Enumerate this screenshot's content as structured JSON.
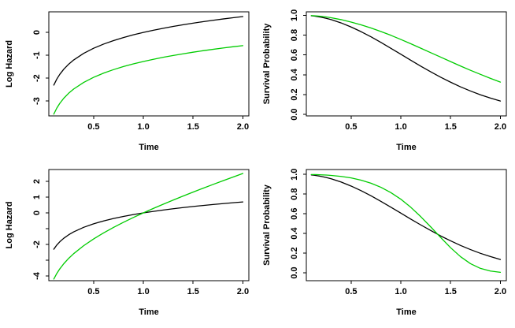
{
  "figure": {
    "description": "2x2 grid of R base-graphics plots comparing log hazard functions and survival probability curves for two groups",
    "background": "#FFFFFF"
  },
  "colors": {
    "black_curve": "#000000",
    "green_curve": "#00CC00",
    "axis": "#000000",
    "text": "#000000"
  },
  "chart_data": [
    {
      "id": "top-left",
      "type": "line",
      "title": "",
      "xlabel": "Time",
      "ylabel": "Log Hazard",
      "xlim": [
        0.05,
        2.06
      ],
      "ylim": [
        -3.65,
        0.9
      ],
      "grid": false,
      "legend": "none",
      "x_ticks": [
        0.5,
        1.0,
        1.5,
        2.0
      ],
      "x_tick_labels": [
        "0.5",
        "1.0",
        "1.5",
        "2.0"
      ],
      "y_ticks": [
        0,
        -1,
        -2,
        -3
      ],
      "y_tick_labels": [
        "0",
        "-1",
        "-2",
        "-3"
      ],
      "x": [
        0.1,
        0.13,
        0.16,
        0.2,
        0.25,
        0.3,
        0.4,
        0.5,
        0.6,
        0.7,
        0.8,
        0.9,
        1,
        1.1,
        1.2,
        1.3,
        1.4,
        1.5,
        1.6,
        1.7,
        1.8,
        1.9,
        2
      ],
      "series": [
        {
          "name": "black log hazard (log t)",
          "color_key": "black_curve",
          "y": [
            -2.303,
            -2.04,
            -1.833,
            -1.609,
            -1.386,
            -1.204,
            -0.916,
            -0.693,
            -0.511,
            -0.357,
            -0.223,
            -0.105,
            0,
            0.095,
            0.182,
            0.262,
            0.336,
            0.405,
            0.47,
            0.531,
            0.588,
            0.642,
            0.693
          ]
        },
        {
          "name": "green log hazard (parallel, log t - 1.27)",
          "color_key": "green_curve",
          "y": [
            -3.573,
            -3.31,
            -3.103,
            -2.879,
            -2.656,
            -2.474,
            -2.186,
            -1.963,
            -1.781,
            -1.627,
            -1.493,
            -1.375,
            -1.27,
            -1.175,
            -1.088,
            -1.008,
            -0.934,
            -0.865,
            -0.8,
            -0.739,
            -0.682,
            -0.628,
            -0.577
          ]
        }
      ]
    },
    {
      "id": "top-right",
      "type": "line",
      "title": "",
      "xlabel": "Time",
      "ylabel": "Survival Probability",
      "xlim": [
        0.05,
        2.06
      ],
      "ylim": [
        -0.015,
        1.035
      ],
      "grid": false,
      "legend": "none",
      "x_ticks": [
        0.5,
        1.0,
        1.5,
        2.0
      ],
      "x_tick_labels": [
        "0.5",
        "1.0",
        "1.5",
        "2.0"
      ],
      "y_ticks": [
        1.0,
        0.8,
        0.6,
        0.4,
        0.2,
        0.0
      ],
      "y_tick_labels": [
        "1.0",
        "0.8",
        "0.6",
        "0.4",
        "0.2",
        "0.0"
      ],
      "x": [
        0.1,
        0.13,
        0.16,
        0.2,
        0.25,
        0.3,
        0.4,
        0.5,
        0.6,
        0.7,
        0.8,
        0.9,
        1,
        1.1,
        1.2,
        1.3,
        1.4,
        1.5,
        1.6,
        1.7,
        1.8,
        1.9,
        2
      ],
      "series": [
        {
          "name": "black survival (faster decline, to 0.14)",
          "color_key": "black_curve",
          "y": [
            0.995,
            0.992,
            0.987,
            0.98,
            0.969,
            0.956,
            0.923,
            0.882,
            0.835,
            0.783,
            0.726,
            0.667,
            0.607,
            0.546,
            0.487,
            0.43,
            0.375,
            0.325,
            0.278,
            0.236,
            0.198,
            0.165,
            0.135
          ]
        },
        {
          "name": "green survival (slower decline, to 0.33)",
          "color_key": "green_curve",
          "y": [
            0.997,
            0.995,
            0.993,
            0.989,
            0.983,
            0.975,
            0.956,
            0.932,
            0.904,
            0.872,
            0.836,
            0.798,
            0.756,
            0.713,
            0.668,
            0.623,
            0.578,
            0.533,
            0.488,
            0.445,
            0.404,
            0.364,
            0.326
          ]
        }
      ]
    },
    {
      "id": "bottom-left",
      "type": "line",
      "title": "",
      "xlabel": "Time",
      "ylabel": "Log Hazard",
      "xlim": [
        0.05,
        2.06
      ],
      "ylim": [
        -4.3,
        2.75
      ],
      "grid": false,
      "legend": "none",
      "x_ticks": [
        0.5,
        1.0,
        1.5,
        2.0
      ],
      "x_tick_labels": [
        "0.5",
        "1.0",
        "1.5",
        "2.0"
      ],
      "y_ticks": [
        2,
        1,
        0,
        -1,
        -2,
        -3,
        -4
      ],
      "y_tick_labels": [
        "2",
        "1",
        "0",
        "",
        "-2",
        "",
        "-4"
      ],
      "x": [
        0.1,
        0.13,
        0.16,
        0.2,
        0.25,
        0.3,
        0.4,
        0.5,
        0.6,
        0.7,
        0.8,
        0.9,
        1,
        1.1,
        1.2,
        1.3,
        1.4,
        1.5,
        1.6,
        1.7,
        1.8,
        1.9,
        2
      ],
      "series": [
        {
          "name": "black log hazard (log t)",
          "color_key": "black_curve",
          "y": [
            -2.303,
            -2.04,
            -1.833,
            -1.609,
            -1.386,
            -1.204,
            -0.916,
            -0.693,
            -0.511,
            -0.357,
            -0.223,
            -0.105,
            0,
            0.095,
            0.182,
            0.262,
            0.336,
            0.405,
            0.47,
            0.531,
            0.588,
            0.642,
            0.693
          ]
        },
        {
          "name": "green log hazard (steeper, crosses black at t=1)",
          "color_key": "green_curve",
          "y": [
            -4.199,
            -3.843,
            -3.552,
            -3.225,
            -2.88,
            -2.584,
            -2.081,
            -1.652,
            -1.271,
            -0.923,
            -0.598,
            -0.291,
            0,
            0.28,
            0.55,
            0.813,
            1.068,
            1.318,
            1.563,
            1.803,
            2.039,
            2.271,
            2.5
          ]
        }
      ]
    },
    {
      "id": "bottom-right",
      "type": "line",
      "title": "",
      "xlabel": "Time",
      "ylabel": "Survival Probability",
      "xlim": [
        0.05,
        2.06
      ],
      "ylim": [
        -0.08,
        1.05
      ],
      "grid": false,
      "legend": "none",
      "x_ticks": [
        0.5,
        1.0,
        1.5,
        2.0
      ],
      "x_tick_labels": [
        "0.5",
        "1.0",
        "1.5",
        "2.0"
      ],
      "y_ticks": [
        1.0,
        0.8,
        0.6,
        0.4,
        0.2,
        0.0
      ],
      "y_tick_labels": [
        "1.0",
        "0.8",
        "0.6",
        "0.4",
        "0.2",
        "0.0"
      ],
      "x": [
        0.1,
        0.13,
        0.16,
        0.2,
        0.25,
        0.3,
        0.4,
        0.5,
        0.6,
        0.7,
        0.8,
        0.9,
        1,
        1.1,
        1.2,
        1.3,
        1.4,
        1.5,
        1.6,
        1.7,
        1.8,
        1.9,
        2
      ],
      "series": [
        {
          "name": "black survival (to 0.14)",
          "color_key": "black_curve",
          "y": [
            0.995,
            0.992,
            0.987,
            0.98,
            0.969,
            0.956,
            0.923,
            0.882,
            0.835,
            0.783,
            0.726,
            0.667,
            0.607,
            0.546,
            0.487,
            0.43,
            0.375,
            0.325,
            0.278,
            0.236,
            0.198,
            0.165,
            0.135
          ]
        },
        {
          "name": "green survival (sigmoid, crosses black near t=1.4, to 0.005)",
          "color_key": "green_curve",
          "y": [
            0.999,
            0.999,
            0.998,
            0.996,
            0.994,
            0.99,
            0.98,
            0.965,
            0.942,
            0.911,
            0.869,
            0.815,
            0.748,
            0.666,
            0.571,
            0.467,
            0.359,
            0.255,
            0.164,
            0.093,
            0.045,
            0.018,
            0.005
          ]
        }
      ]
    }
  ]
}
